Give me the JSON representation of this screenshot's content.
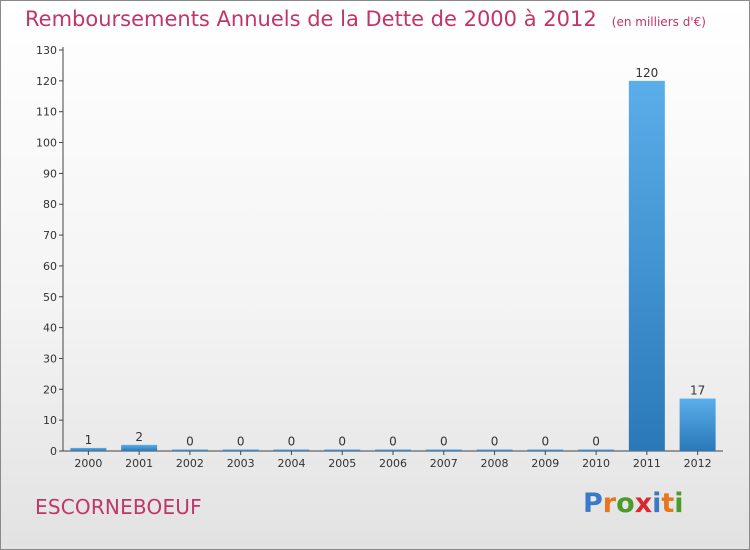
{
  "header": {
    "title": "Remboursements Annuels de la Dette de 2000 à 2012",
    "subtitle": "(en milliers d'€)"
  },
  "commune": "ESCORNEBOEUF",
  "logo": {
    "text": "Proxiti",
    "letter_colors": [
      "#3a78c8",
      "#e8761e",
      "#4c9a2a",
      "#d9282f",
      "#3a78c8",
      "#e8761e",
      "#4c9a2a"
    ]
  },
  "colors": {
    "title": "#c0356a",
    "bar_light": "#5aaeea",
    "bar_dark": "#2a78b8"
  },
  "chart_data": {
    "type": "bar",
    "categories": [
      "2000",
      "2001",
      "2002",
      "2003",
      "2004",
      "2005",
      "2006",
      "2007",
      "2008",
      "2009",
      "2010",
      "2011",
      "2012"
    ],
    "values": [
      1,
      2,
      0,
      0,
      0,
      0,
      0,
      0,
      0,
      0,
      0,
      120,
      17
    ],
    "ylim": [
      0,
      130
    ],
    "yticks": [
      0,
      10,
      20,
      30,
      40,
      50,
      60,
      70,
      80,
      90,
      100,
      110,
      120,
      130
    ],
    "grid": false,
    "legend": "none"
  }
}
